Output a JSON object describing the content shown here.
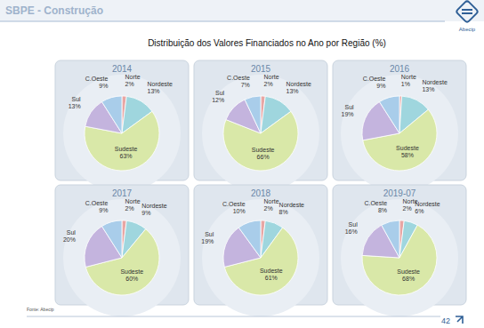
{
  "header": {
    "section": "SBPE - Construção",
    "title": "Distribuição dos Valores Financiados no Ano por Região (%)",
    "logo": "Abecip"
  },
  "chart_data": [
    {
      "type": "pie",
      "title": "2014",
      "categories": [
        "Norte",
        "Nordeste",
        "Sudeste",
        "Sul",
        "C.Oeste"
      ],
      "values": [
        2,
        13,
        63,
        13,
        9
      ],
      "value_labels": [
        "2%",
        "13%",
        "63%",
        "13%",
        "9%"
      ],
      "colors": [
        "#e8a6a4",
        "#9fd6de",
        "#d9e8a8",
        "#c4b4de",
        "#a9cdea"
      ],
      "data_labels": true
    },
    {
      "type": "pie",
      "title": "2015",
      "categories": [
        "Norte",
        "Nordeste",
        "Sudeste",
        "Sul",
        "C.Oeste"
      ],
      "values": [
        2,
        13,
        66,
        12,
        7
      ],
      "value_labels": [
        "2%",
        "13%",
        "66%",
        "12%",
        "7%"
      ],
      "colors": [
        "#e8a6a4",
        "#9fd6de",
        "#d9e8a8",
        "#c4b4de",
        "#a9cdea"
      ],
      "data_labels": true
    },
    {
      "type": "pie",
      "title": "2016",
      "categories": [
        "Norte",
        "Nordeste",
        "Sudeste",
        "Sul",
        "C.Oeste"
      ],
      "values": [
        1,
        13,
        58,
        19,
        9
      ],
      "value_labels": [
        "1%",
        "13%",
        "58%",
        "19%",
        "9%"
      ],
      "colors": [
        "#e8a6a4",
        "#9fd6de",
        "#d9e8a8",
        "#c4b4de",
        "#a9cdea"
      ],
      "data_labels": true
    },
    {
      "type": "pie",
      "title": "2017",
      "categories": [
        "Norte",
        "Nordeste",
        "Sudeste",
        "Sul",
        "C.Oeste"
      ],
      "values": [
        2,
        9,
        60,
        20,
        9
      ],
      "value_labels": [
        "2%",
        "9%",
        "60%",
        "20%",
        "9%"
      ],
      "colors": [
        "#e8a6a4",
        "#9fd6de",
        "#d9e8a8",
        "#c4b4de",
        "#a9cdea"
      ],
      "data_labels": true
    },
    {
      "type": "pie",
      "title": "2018",
      "categories": [
        "Norte",
        "Nordeste",
        "Sudeste",
        "Sul",
        "C.Oeste"
      ],
      "values": [
        2,
        8,
        61,
        19,
        10
      ],
      "value_labels": [
        "2%",
        "8%",
        "61%",
        "19%",
        "10%"
      ],
      "colors": [
        "#e8a6a4",
        "#9fd6de",
        "#d9e8a8",
        "#c4b4de",
        "#a9cdea"
      ],
      "data_labels": true
    },
    {
      "type": "pie",
      "title": "2019-07",
      "categories": [
        "Norte",
        "Nordeste",
        "Sudeste",
        "Sul",
        "C.Oeste"
      ],
      "values": [
        2,
        6,
        68,
        16,
        8
      ],
      "value_labels": [
        "2%",
        "6%",
        "68%",
        "16%",
        "8%"
      ],
      "colors": [
        "#e8a6a4",
        "#9fd6de",
        "#d9e8a8",
        "#c4b4de",
        "#a9cdea"
      ],
      "data_labels": true
    }
  ],
  "footer": {
    "source": "Fonte: Abecip",
    "page": "42"
  }
}
